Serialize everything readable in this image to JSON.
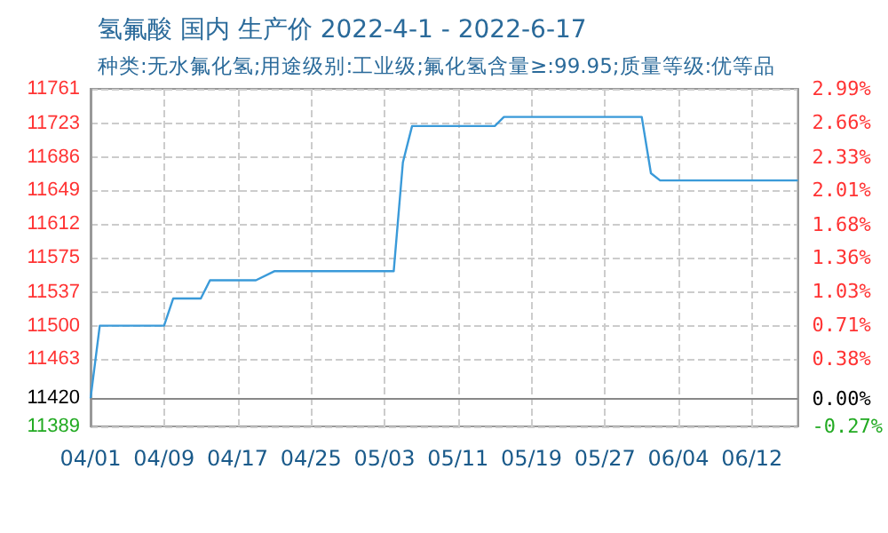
{
  "chart_data": {
    "type": "line",
    "title": "氢氟酸 国内 生产价 2022-4-1 - 2022-6-17",
    "subtitle": "种类:无水氟化氢;用途级别:工业级;氟化氢含量≥:99.95;质量等级:优等品",
    "x": [
      "2022-04-01",
      "2022-04-02",
      "2022-04-09",
      "2022-04-10",
      "2022-04-13",
      "2022-04-14",
      "2022-04-19",
      "2022-04-21",
      "2022-05-04",
      "2022-05-05",
      "2022-05-06",
      "2022-05-15",
      "2022-05-16",
      "2022-05-31",
      "2022-06-01",
      "2022-06-02",
      "2022-06-17"
    ],
    "series": [
      {
        "color": "#3a9ad9",
        "values": [
          11420,
          11500,
          11500,
          11530,
          11530,
          11550,
          11550,
          11560,
          11560,
          11680,
          11720,
          11720,
          11730,
          11730,
          11668,
          11660,
          11660
        ]
      }
    ],
    "xlim": [
      "2022-04-01",
      "2022-06-17"
    ],
    "xticks": [
      {
        "value": "2022-04-01",
        "label": "04/01"
      },
      {
        "value": "2022-04-09",
        "label": "04/09"
      },
      {
        "value": "2022-04-17",
        "label": "04/17"
      },
      {
        "value": "2022-04-25",
        "label": "04/25"
      },
      {
        "value": "2022-05-03",
        "label": "05/03"
      },
      {
        "value": "2022-05-11",
        "label": "05/11"
      },
      {
        "value": "2022-05-19",
        "label": "05/19"
      },
      {
        "value": "2022-05-27",
        "label": "05/27"
      },
      {
        "value": "2022-06-04",
        "label": "06/04"
      },
      {
        "value": "2022-06-12",
        "label": "06/12"
      }
    ],
    "ylim": [
      11389,
      11761
    ],
    "yticks": [
      11389,
      11420,
      11463,
      11500,
      11537,
      11575,
      11612,
      11649,
      11686,
      11723,
      11761
    ],
    "y2lim": [
      -0.27,
      2.99
    ],
    "y2ticks": [
      {
        "value": -0.27,
        "label": "-0.27%"
      },
      {
        "value": 0,
        "label": "0.00%"
      },
      {
        "value": 0.38,
        "label": "0.38%"
      },
      {
        "value": 0.71,
        "label": "0.71%"
      },
      {
        "value": 1.03,
        "label": "1.03%"
      },
      {
        "value": 1.36,
        "label": "1.36%"
      },
      {
        "value": 1.68,
        "label": "1.68%"
      },
      {
        "value": 2.01,
        "label": "2.01%"
      },
      {
        "value": 2.33,
        "label": "2.33%"
      },
      {
        "value": 2.66,
        "label": "2.66%"
      },
      {
        "value": 2.99,
        "label": "2.99%"
      }
    ],
    "ref_lines": [
      {
        "axis": "y",
        "value": 11420,
        "color": "#888888"
      }
    ],
    "grid": true,
    "marker": "none",
    "line_style": "solid"
  }
}
